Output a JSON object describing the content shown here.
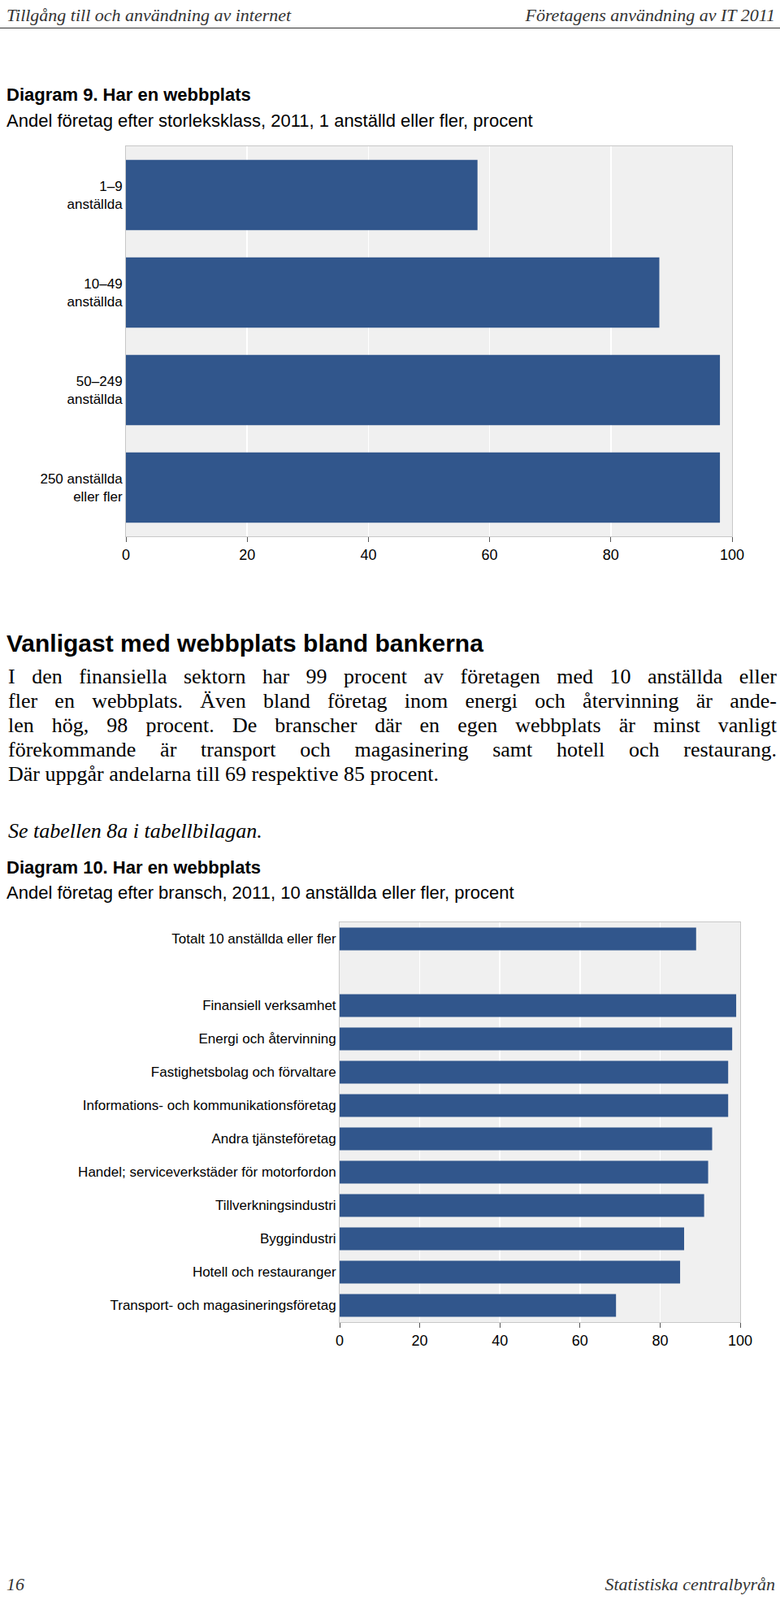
{
  "header": {
    "left": "Tillgång till och användning av internet",
    "right": "Företagens användning av IT 2011"
  },
  "chart_data": [
    {
      "type": "bar",
      "title": "Diagram 9. Har en webbplats",
      "subtitle": "Andel företag efter storleksklass, 2011, 1 anställd eller fler, procent",
      "orientation": "horizontal",
      "categories": [
        "1–9\nanställda",
        "10–49\nanställda",
        "50–249\nanställda",
        "250 anställda\neller fler"
      ],
      "values": [
        58,
        88,
        98,
        98
      ],
      "color": "#31568c",
      "xlim": [
        0,
        100
      ],
      "xticks": [
        0,
        20,
        40,
        60,
        80,
        100
      ],
      "grid": true
    },
    {
      "type": "bar",
      "title": "Diagram 10. Har en webbplats",
      "subtitle": "Andel företag efter bransch, 2011, 10 anställda eller fler, procent",
      "orientation": "horizontal",
      "categories": [
        "Totalt 10 anställda eller fler",
        null,
        "Finansiell verksamhet",
        "Energi och återvinning",
        "Fastighetsbolag och förvaltare",
        "Informations- och kommunikationsföretag",
        "Andra tjänsteföretag",
        "Handel; serviceverkstäder för motorfordon",
        "Tillverkningsindustri",
        "Byggindustri",
        "Hotell och restauranger",
        "Transport- och magasineringsföretag"
      ],
      "values": [
        89,
        null,
        99,
        98,
        97,
        97,
        93,
        92,
        91,
        86,
        85,
        69
      ],
      "color": "#31568c",
      "xlim": [
        0,
        100
      ],
      "xticks": [
        0,
        20,
        40,
        60,
        80,
        100
      ],
      "grid": true
    }
  ],
  "section": {
    "heading": "Vanligast med webbplats bland bankerna",
    "lines": [
      "I den finansiella sektorn har 99 procent av företagen med 10 anställda eller",
      "fler en webbplats. Även bland företag inom energi och återvinning är ande-",
      "len hög, 98 procent. De branscher där en egen webbplats är minst vanligt",
      "förekommande är transport och magasinering samt hotell och restaurang.",
      "Där uppgår andelarna till 69 respektive 85 procent."
    ],
    "reference": "Se tabellen 8a i tabellbilagan."
  },
  "footer": {
    "left": "16",
    "right": "Statistiska centralbyrån"
  }
}
